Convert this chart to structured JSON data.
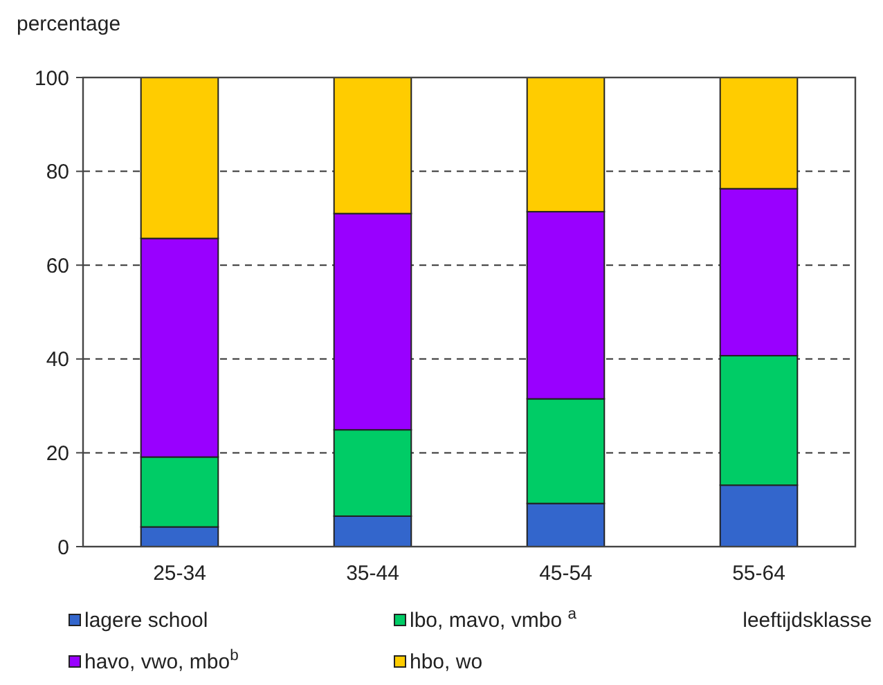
{
  "chart_data": {
    "type": "bar",
    "stacked": true,
    "ylabel": "percentage",
    "xlabel": "leeftijdsklasse",
    "categories": [
      "25-34",
      "35-44",
      "45-54",
      "55-64"
    ],
    "series": [
      {
        "name": "lagere school",
        "color": "#3366cc",
        "values": [
          4.2,
          6.5,
          9.2,
          13.1
        ]
      },
      {
        "name": "lbo, mavo, vmbo $^{a}$",
        "color": "#00cc66",
        "values": [
          14.9,
          18.4,
          22.3,
          27.6
        ]
      },
      {
        "name": "havo, vwo, mbo$^{b}$",
        "color": "#9900ff",
        "values": [
          46.6,
          46.1,
          39.9,
          35.6
        ]
      },
      {
        "name": "hbo, wo",
        "color": "#ffcc00",
        "values": [
          34.3,
          29.0,
          28.6,
          23.7
        ]
      }
    ],
    "ylim": [
      0,
      100
    ],
    "yticks": [
      0,
      20,
      40,
      60,
      80,
      100
    ],
    "grid": "y",
    "legend": "bottom"
  }
}
